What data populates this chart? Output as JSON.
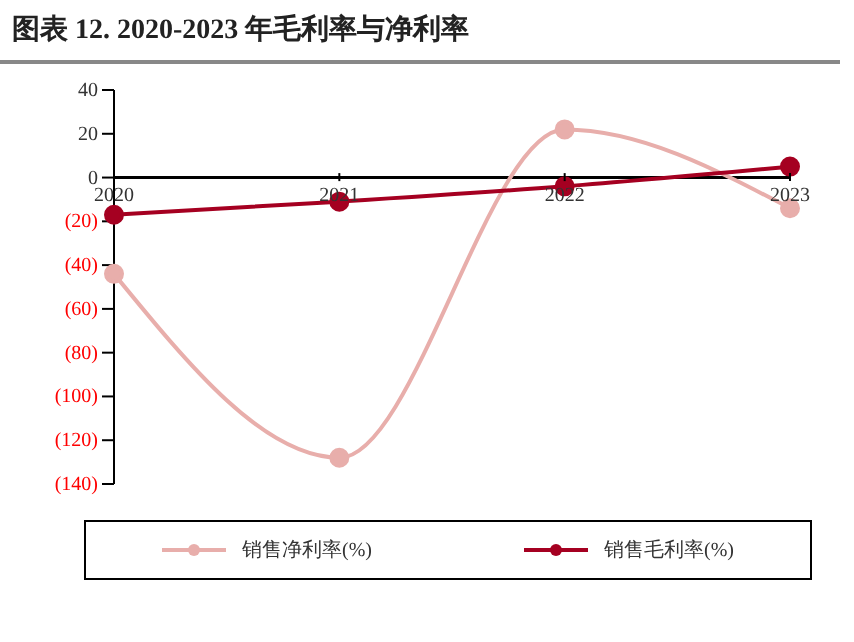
{
  "chart_data": {
    "type": "line",
    "title": "图表 12. 2020-2023 年毛利率与净利率",
    "categories": [
      "2020",
      "2021",
      "2022",
      "2023"
    ],
    "series": [
      {
        "name": "销售净利率(%)",
        "color": "#e8aeab",
        "values": [
          -44,
          -128,
          22,
          -14
        ]
      },
      {
        "name": "销售毛利率(%)",
        "color": "#a50021",
        "values": [
          -17,
          -11,
          -4,
          5
        ]
      }
    ],
    "ylim": [
      -140,
      40
    ],
    "yticks": [
      40,
      20,
      0,
      {
        "value": -20,
        "label": "(20)"
      },
      {
        "value": -40,
        "label": "(40)"
      },
      {
        "value": -60,
        "label": "(60)"
      },
      {
        "value": -80,
        "label": "(80)"
      },
      {
        "value": -100,
        "label": "(100)"
      },
      {
        "value": -120,
        "label": "(120)"
      },
      {
        "value": -140,
        "label": "(140)"
      }
    ],
    "legend": "bottom",
    "marker": "circle"
  }
}
